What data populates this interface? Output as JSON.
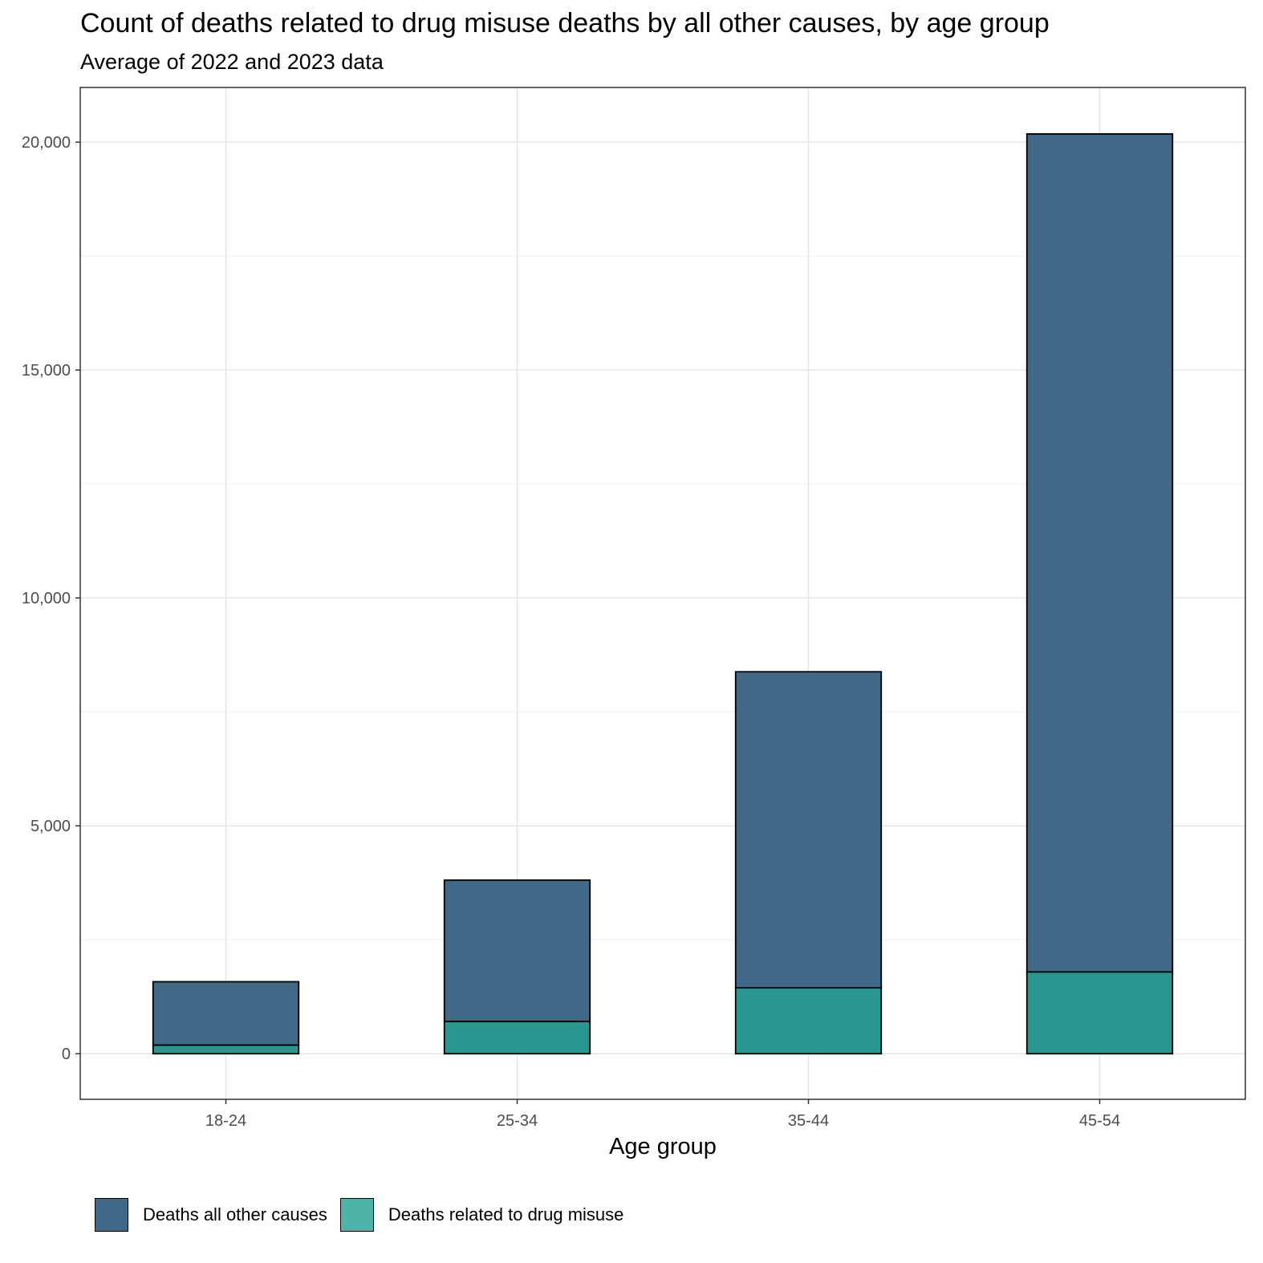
{
  "chart_data": {
    "type": "bar",
    "stacked": true,
    "title": "Count of deaths related to drug misuse deaths by all other causes, by age group",
    "subtitle": "Average of 2022 and 2023 data",
    "xlabel": "Age group",
    "ylabel": "",
    "categories": [
      "18-24",
      "25-34",
      "35-44",
      "45-54"
    ],
    "series": [
      {
        "name": "Deaths related to drug misuse",
        "color": "#2a9690",
        "values": [
          190,
          710,
          1445,
          1795
        ]
      },
      {
        "name": "Deaths all other causes",
        "color": "#426887",
        "values": [
          1390,
          3100,
          6935,
          18385
        ]
      }
    ],
    "ylim": [
      -1000,
      21200
    ],
    "yticks": [
      0,
      5000,
      10000,
      15000,
      20000
    ],
    "ytick_labels": [
      "0",
      "5,000",
      "10,000",
      "15,000",
      "20,000"
    ],
    "grid": true,
    "legend_position": "bottom",
    "legend": [
      {
        "label": "Deaths all other causes",
        "color": "#426887"
      },
      {
        "label": "Deaths related to drug misuse",
        "color": "#4eb3a9"
      }
    ]
  }
}
